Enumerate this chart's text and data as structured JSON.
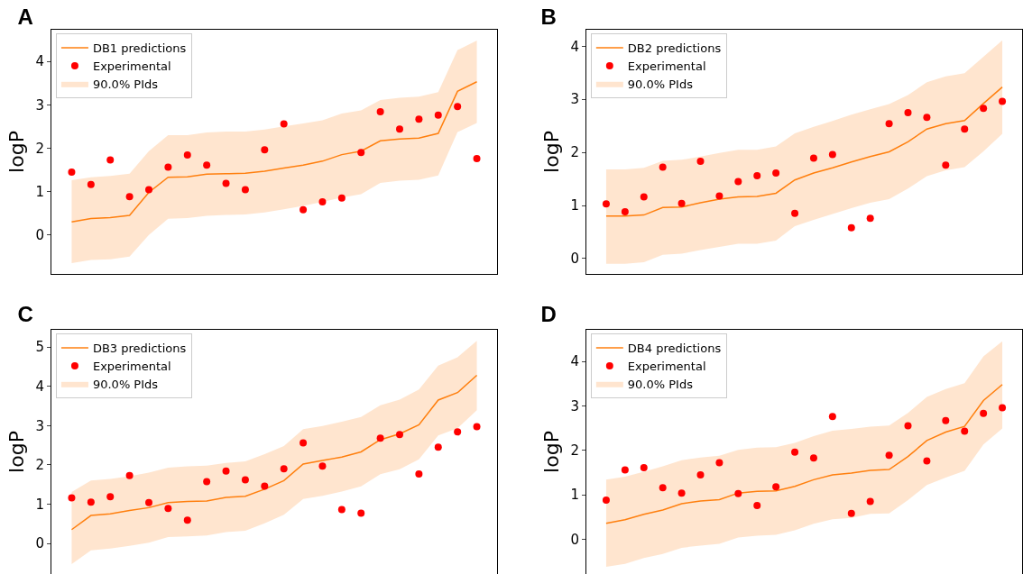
{
  "chart_data": [
    {
      "type": "line",
      "title": "A",
      "ylabel": "logP",
      "annotations": [
        "90.0% PIds"
      ],
      "categories": [
        null,
        null,
        null,
        null,
        null,
        null,
        null,
        null,
        null,
        null,
        null,
        null,
        null,
        null,
        null,
        null,
        null,
        null,
        null,
        null,
        null,
        null
      ],
      "ylim": [
        -0.9,
        4.73
      ],
      "yticks": [
        0,
        1,
        2,
        3,
        4
      ],
      "tick_labels": "y",
      "grid": false,
      "legend": "top left",
      "series": [
        {
          "name": "DB1 predictions",
          "color": "#ff7f0e",
          "values": [
            0.3,
            0.38,
            0.4,
            0.45,
            0.98,
            1.33,
            1.34,
            1.4,
            1.41,
            1.42,
            1.47,
            1.54,
            1.61,
            1.7,
            1.85,
            1.93,
            2.17,
            2.21,
            2.23,
            2.34,
            3.31,
            3.53
          ],
          "upper": [
            1.26,
            1.33,
            1.36,
            1.41,
            1.93,
            2.3,
            2.3,
            2.36,
            2.38,
            2.38,
            2.43,
            2.5,
            2.57,
            2.64,
            2.8,
            2.87,
            3.11,
            3.16,
            3.19,
            3.29,
            4.26,
            4.48
          ],
          "lower": [
            -0.65,
            -0.58,
            -0.56,
            -0.5,
            0.0,
            0.37,
            0.39,
            0.44,
            0.46,
            0.47,
            0.52,
            0.59,
            0.67,
            0.76,
            0.86,
            0.94,
            1.2,
            1.25,
            1.27,
            1.37,
            2.37,
            2.58
          ]
        },
        {
          "name": "Experimental",
          "type": "scatter",
          "marker": "circle",
          "color": "#ff0000",
          "values": [
            1.45,
            1.16,
            1.73,
            0.88,
            1.04,
            1.56,
            1.84,
            1.61,
            1.19,
            1.04,
            1.96,
            2.56,
            0.58,
            0.76,
            0.85,
            1.9,
            2.84,
            2.44,
            2.67,
            2.76,
            2.96,
            1.76
          ]
        }
      ]
    },
    {
      "type": "line",
      "title": "B",
      "ylabel": "logP",
      "annotations": [
        "90.0% PIds"
      ],
      "categories": [
        null,
        null,
        null,
        null,
        null,
        null,
        null,
        null,
        null,
        null,
        null,
        null,
        null,
        null,
        null,
        null,
        null,
        null,
        null,
        null,
        null,
        null
      ],
      "ylim": [
        -0.29,
        4.31
      ],
      "yticks": [
        0,
        1,
        2,
        3,
        4
      ],
      "tick_labels": "y",
      "grid": false,
      "legend": "top left",
      "series": [
        {
          "name": "DB2 predictions",
          "color": "#ff7f0e",
          "values": [
            0.8,
            0.8,
            0.82,
            0.96,
            0.97,
            1.05,
            1.12,
            1.16,
            1.17,
            1.23,
            1.48,
            1.61,
            1.71,
            1.82,
            1.92,
            2.01,
            2.2,
            2.44,
            2.54,
            2.6,
            2.92,
            3.23
          ],
          "upper": [
            1.68,
            1.68,
            1.71,
            1.84,
            1.86,
            1.92,
            1.99,
            2.05,
            2.05,
            2.11,
            2.36,
            2.48,
            2.59,
            2.71,
            2.81,
            2.91,
            3.08,
            3.32,
            3.43,
            3.49,
            3.8,
            4.11
          ],
          "lower": [
            -0.1,
            -0.1,
            -0.07,
            0.07,
            0.09,
            0.16,
            0.22,
            0.28,
            0.28,
            0.34,
            0.61,
            0.73,
            0.84,
            0.95,
            1.05,
            1.12,
            1.32,
            1.55,
            1.66,
            1.72,
            2.02,
            2.35
          ]
        },
        {
          "name": "Experimental",
          "type": "scatter",
          "marker": "circle",
          "color": "#ff0000",
          "values": [
            1.03,
            0.88,
            1.16,
            1.72,
            1.04,
            1.83,
            1.18,
            1.45,
            1.56,
            1.61,
            0.85,
            1.89,
            1.96,
            0.58,
            0.76,
            2.54,
            2.75,
            2.66,
            1.76,
            2.44,
            2.83,
            2.96
          ]
        }
      ]
    },
    {
      "type": "line",
      "title": "C",
      "ylabel": "logP",
      "annotations": [
        "90.0% PIds"
      ],
      "categories": [
        null,
        null,
        null,
        null,
        null,
        null,
        null,
        null,
        null,
        null,
        null,
        null,
        null,
        null,
        null,
        null,
        null,
        null,
        null,
        null,
        null,
        null
      ],
      "ylim": [
        -0.78,
        5.44
      ],
      "yticks": [
        0,
        1,
        2,
        3,
        4,
        5
      ],
      "tick_labels": "y",
      "grid": false,
      "legend": "top left",
      "series": [
        {
          "name": "DB3 predictions",
          "color": "#ff7f0e",
          "values": [
            0.35,
            0.71,
            0.75,
            0.84,
            0.91,
            1.04,
            1.07,
            1.08,
            1.17,
            1.2,
            1.38,
            1.6,
            2.02,
            2.11,
            2.2,
            2.33,
            2.64,
            2.79,
            3.02,
            3.65,
            3.84,
            4.28
          ],
          "upper": [
            1.31,
            1.6,
            1.64,
            1.71,
            1.8,
            1.93,
            1.96,
            1.98,
            2.05,
            2.09,
            2.27,
            2.48,
            2.91,
            2.99,
            3.1,
            3.22,
            3.52,
            3.66,
            3.92,
            4.53,
            4.74,
            5.16
          ],
          "lower": [
            -0.53,
            -0.18,
            -0.13,
            -0.06,
            0.02,
            0.16,
            0.18,
            0.2,
            0.29,
            0.32,
            0.51,
            0.73,
            1.13,
            1.21,
            1.32,
            1.45,
            1.76,
            1.89,
            2.14,
            2.75,
            2.93,
            3.39
          ]
        },
        {
          "name": "Experimental",
          "type": "scatter",
          "marker": "circle",
          "color": "#ff0000",
          "values": [
            1.16,
            1.05,
            1.19,
            1.73,
            1.04,
            0.89,
            0.59,
            1.57,
            1.84,
            1.62,
            1.46,
            1.9,
            2.56,
            1.97,
            0.86,
            0.77,
            2.68,
            2.77,
            1.77,
            2.45,
            2.84,
            2.97
          ]
        }
      ]
    },
    {
      "type": "line",
      "title": "D",
      "ylabel": "logP",
      "annotations": [
        "90.0% PIds"
      ],
      "categories": [
        null,
        null,
        null,
        null,
        null,
        null,
        null,
        null,
        null,
        null,
        null,
        null,
        null,
        null,
        null,
        null,
        null,
        null,
        null,
        null,
        null,
        null
      ],
      "ylim": [
        -0.78,
        4.71
      ],
      "yticks": [
        0,
        1,
        2,
        3,
        4
      ],
      "tick_labels": "y",
      "grid": false,
      "legend": "top left",
      "series": [
        {
          "name": "DB4 predictions",
          "color": "#ff7f0e",
          "values": [
            0.36,
            0.44,
            0.56,
            0.66,
            0.8,
            0.86,
            0.89,
            1.04,
            1.08,
            1.09,
            1.19,
            1.34,
            1.45,
            1.49,
            1.55,
            1.57,
            1.86,
            2.22,
            2.41,
            2.54,
            3.12,
            3.48
          ],
          "upper": [
            1.34,
            1.41,
            1.52,
            1.64,
            1.78,
            1.84,
            1.88,
            2.01,
            2.06,
            2.07,
            2.17,
            2.32,
            2.44,
            2.48,
            2.53,
            2.56,
            2.84,
            3.2,
            3.38,
            3.51,
            4.11,
            4.45
          ],
          "lower": [
            -0.62,
            -0.55,
            -0.42,
            -0.33,
            -0.19,
            -0.14,
            -0.1,
            0.04,
            0.08,
            0.1,
            0.2,
            0.35,
            0.45,
            0.48,
            0.57,
            0.58,
            0.88,
            1.22,
            1.39,
            1.54,
            2.13,
            2.49
          ]
        },
        {
          "name": "Experimental",
          "type": "scatter",
          "marker": "circle",
          "color": "#ff0000",
          "values": [
            0.88,
            1.56,
            1.61,
            1.16,
            1.04,
            1.45,
            1.72,
            1.03,
            0.76,
            1.18,
            1.96,
            1.83,
            2.76,
            0.58,
            0.85,
            1.89,
            2.55,
            1.76,
            2.67,
            2.43,
            2.83,
            2.96
          ]
        }
      ]
    }
  ]
}
